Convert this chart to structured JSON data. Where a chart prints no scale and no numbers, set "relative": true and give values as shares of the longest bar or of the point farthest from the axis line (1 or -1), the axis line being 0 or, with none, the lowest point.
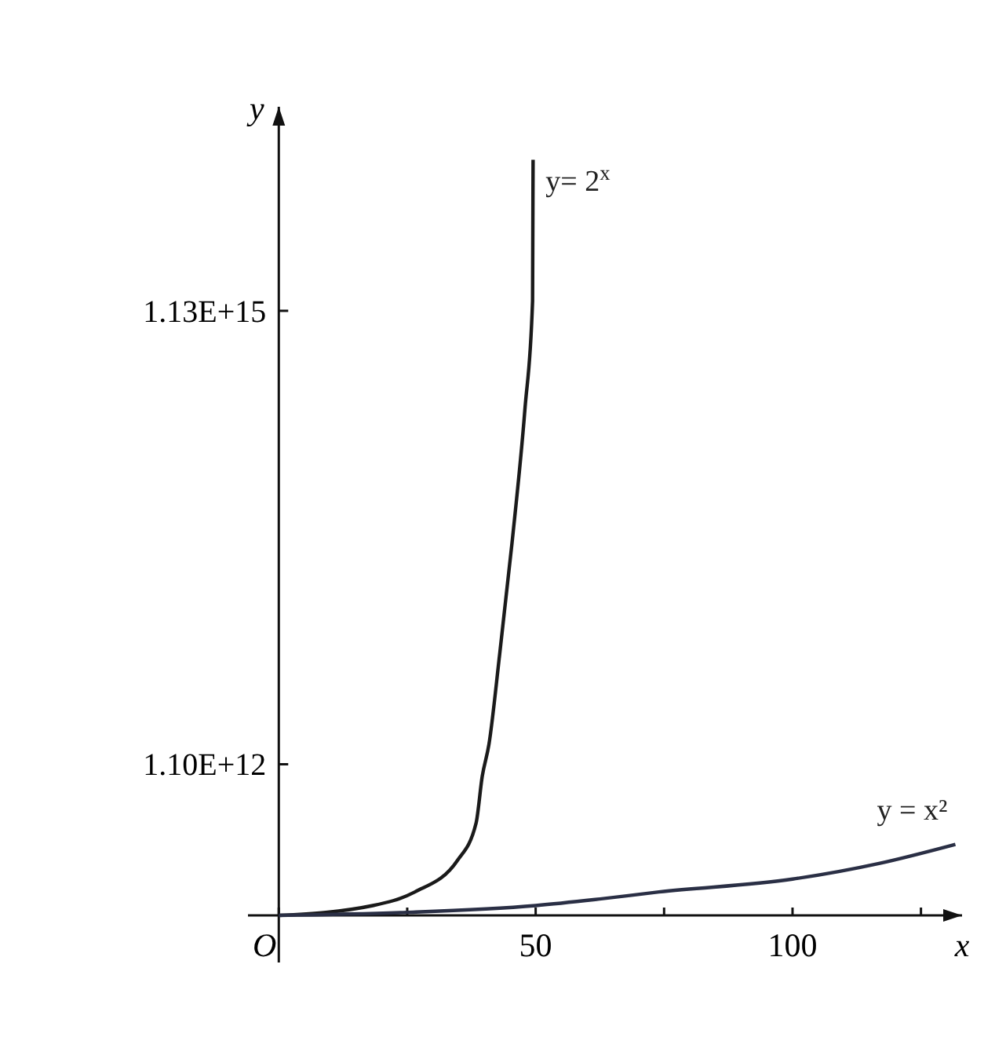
{
  "chart_data": {
    "type": "line",
    "xlabel": "x",
    "ylabel": "y",
    "relative": true,
    "xlim": [
      -6,
      133
    ],
    "xticks": [
      {
        "value": 0,
        "label": "O"
      },
      {
        "value": 25,
        "label": null
      },
      50,
      {
        "value": 75,
        "label": null
      },
      100,
      {
        "value": 125,
        "label": null
      }
    ],
    "annotations": [
      "1.10E+12",
      "1.13E+15"
    ],
    "marker": "none",
    "line_style": "solid",
    "series": [
      {
        "name": "y= 2$^{x}$",
        "color": "#1a1a1a",
        "x": [
          0,
          18.3,
          26.5,
          34.8,
          38.4,
          39.6,
          40.9,
          43,
          45.4,
          47.9,
          49.4,
          49.5
        ],
        "values": [
          0,
          0.013,
          0.031,
          0.073,
          0.122,
          0.184,
          0.226,
          0.346,
          0.493,
          0.669,
          0.813,
          1
        ]
      },
      {
        "name": "y = x²",
        "color": "#2a2f45",
        "x": [
          0,
          25,
          50,
          61.6,
          74,
          100,
          117,
          131.7
        ],
        "values": [
          0,
          0.004,
          0.013,
          0.021,
          0.031,
          0.048,
          0.069,
          0.094
        ]
      }
    ]
  }
}
